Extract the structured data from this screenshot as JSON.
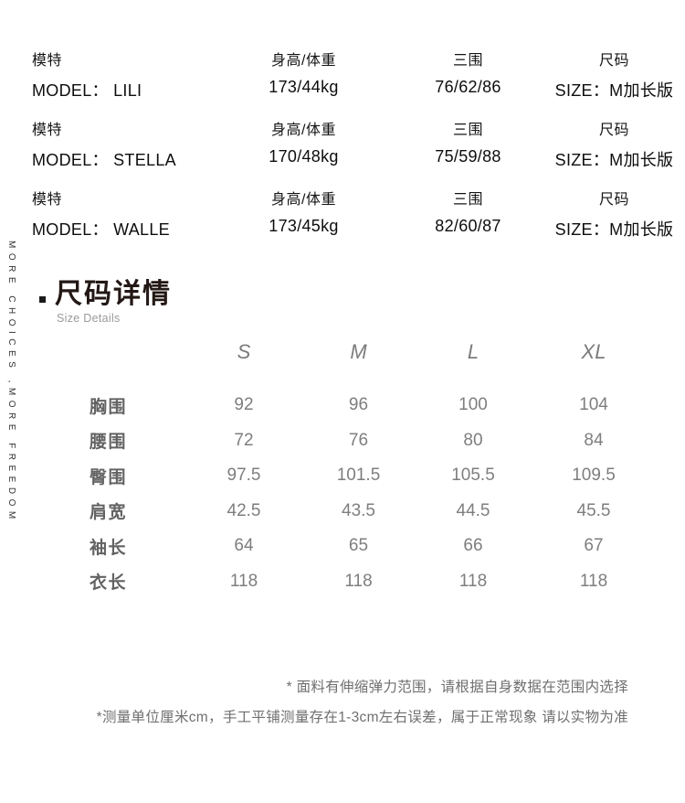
{
  "side_text": "MORE CHOICES ,MORE FREEDOM",
  "model_table": {
    "rows": [
      {
        "model_label": "模特",
        "model": "MODEL： LILI",
        "height_label": "身高/体重",
        "height": "173/44kg",
        "bwh_label": "三围",
        "bwh": "76/62/86",
        "size_label": "尺码",
        "size": "SIZE：M加长版"
      },
      {
        "model_label": "模特",
        "model": "MODEL： STELLA",
        "height_label": "身高/体重",
        "height": "170/48kg",
        "bwh_label": "三围",
        "bwh": "75/59/88",
        "size_label": "尺码",
        "size": "SIZE：M加长版"
      },
      {
        "model_label": "模特",
        "model": "MODEL： WALLE",
        "height_label": "身高/体重",
        "height": "173/45kg",
        "bwh_label": "三围",
        "bwh": "82/60/87",
        "size_label": "尺码",
        "size": "SIZE：M加长版"
      }
    ]
  },
  "section": {
    "title": "尺码详情",
    "subtitle": "Size Details"
  },
  "chart_data": {
    "type": "table",
    "title": "尺码详情",
    "columns": [
      "S",
      "M",
      "L",
      "XL"
    ],
    "rows": [
      {
        "label": "胸围",
        "values": [
          92,
          96,
          100,
          104
        ]
      },
      {
        "label": "腰围",
        "values": [
          72,
          76,
          80,
          84
        ]
      },
      {
        "label": "臀围",
        "values": [
          97.5,
          101.5,
          105.5,
          109.5
        ]
      },
      {
        "label": "肩宽",
        "values": [
          42.5,
          43.5,
          44.5,
          45.5
        ]
      },
      {
        "label": "袖长",
        "values": [
          64,
          65,
          66,
          67
        ]
      },
      {
        "label": "衣长",
        "values": [
          118,
          118,
          118,
          118
        ]
      }
    ]
  },
  "notes": [
    "* 面料有伸缩弹力范围，请根据自身数据在范围内选择",
    "*测量单位厘米cm，手工平铺测量存在1-3cm左右误差，属于正常现象 请以实物为准"
  ],
  "colors": {
    "background": "#ffffff",
    "text_primary": "#111111",
    "section_title": "#231815",
    "section_subtitle": "#9a9a9a",
    "size_header": "#7b7b7b",
    "size_label": "#636363",
    "size_value": "#7e7e7e",
    "note_text": "#6f6f6f"
  }
}
